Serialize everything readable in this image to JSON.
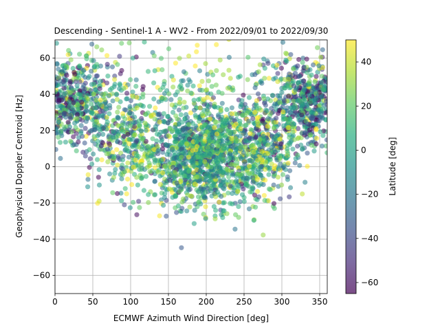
{
  "chart_data": {
    "type": "scatter",
    "title": "Descending - Sentinel-1 A - WV2 - From 2022/09/01 to 2022/09/30",
    "xlabel": "ECMWF Azimuth Wind Direction [deg]",
    "ylabel": "Geophysical Doppler Centroid [Hz]",
    "xlim": [
      0,
      360
    ],
    "ylim": [
      -70,
      70
    ],
    "xticks": [
      0,
      50,
      100,
      150,
      200,
      250,
      300,
      350
    ],
    "yticks": [
      -60,
      -40,
      -20,
      0,
      20,
      40,
      60
    ],
    "grid": true,
    "marker_alpha": 0.55,
    "colormap": "viridis",
    "colorbar": {
      "label": "Latitude [deg]",
      "min": -65,
      "max": 50,
      "ticks": [
        -60,
        -40,
        -20,
        0,
        20,
        40
      ]
    },
    "clusters": [
      {
        "x_center": 200,
        "y_center": 5,
        "x_spread": 42,
        "y_spread": 14,
        "count": 1400,
        "lat_mean": 0,
        "lat_spread": 25
      },
      {
        "x_center": 30,
        "y_center": 35,
        "x_spread": 30,
        "y_spread": 13,
        "count": 500,
        "lat_mean": -10,
        "lat_spread": 35
      },
      {
        "x_center": 330,
        "y_center": 35,
        "x_spread": 28,
        "y_spread": 13,
        "count": 500,
        "lat_mean": -15,
        "lat_spread": 35
      },
      {
        "x_center": 100,
        "y_center": 15,
        "x_spread": 25,
        "y_spread": 14,
        "count": 300,
        "lat_mean": 5,
        "lat_spread": 35
      },
      {
        "x_center": 280,
        "y_center": 15,
        "x_spread": 22,
        "y_spread": 13,
        "count": 300,
        "lat_mean": 5,
        "lat_spread": 35
      },
      {
        "x_center": 180,
        "y_center": 45,
        "x_spread": 70,
        "y_spread": 15,
        "count": 150,
        "lat_mean": 20,
        "lat_spread": 20
      }
    ]
  }
}
